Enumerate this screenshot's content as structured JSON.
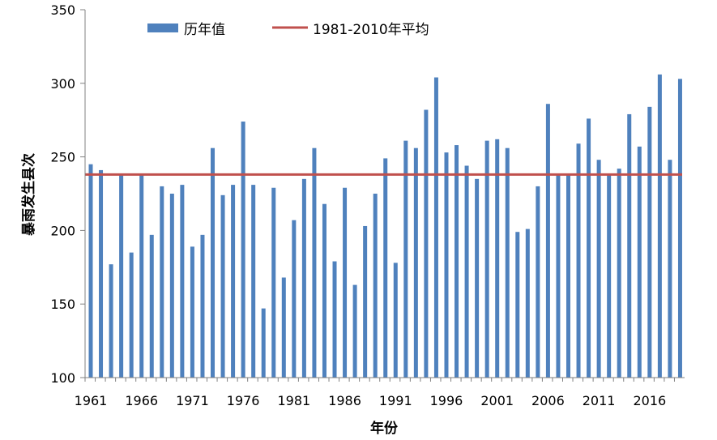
{
  "chart_data": {
    "type": "bar",
    "title": "",
    "xlabel": "年份",
    "ylabel": "暴雨发生县次",
    "ylim": [
      100,
      350
    ],
    "yticks": [
      100,
      150,
      200,
      250,
      300,
      350
    ],
    "xtick_labels": [
      "1961",
      "1966",
      "1971",
      "1976",
      "1981",
      "1986",
      "1991",
      "1996",
      "2001",
      "2006",
      "2011",
      "2016"
    ],
    "legend_position": "top",
    "grid": false,
    "years": [
      1961,
      1962,
      1963,
      1964,
      1965,
      1966,
      1967,
      1968,
      1969,
      1970,
      1971,
      1972,
      1973,
      1974,
      1975,
      1976,
      1977,
      1978,
      1979,
      1980,
      1981,
      1982,
      1983,
      1984,
      1985,
      1986,
      1987,
      1988,
      1989,
      1990,
      1991,
      1992,
      1993,
      1994,
      1995,
      1996,
      1997,
      1998,
      1999,
      2000,
      2001,
      2002,
      2003,
      2004,
      2005,
      2006,
      2007,
      2008,
      2009,
      2010,
      2011,
      2012,
      2013,
      2014,
      2015,
      2016,
      2017,
      2018,
      2019
    ],
    "series": [
      {
        "name": "历年值",
        "type": "bar",
        "color": "#4f81bd",
        "values": [
          245,
          241,
          177,
          238,
          185,
          238,
          197,
          230,
          225,
          231,
          189,
          197,
          256,
          224,
          231,
          274,
          231,
          147,
          229,
          168,
          207,
          235,
          256,
          218,
          179,
          229,
          163,
          203,
          225,
          249,
          178,
          261,
          256,
          282,
          304,
          253,
          258,
          244,
          235,
          261,
          262,
          256,
          199,
          201,
          230,
          286,
          238,
          238,
          259,
          276,
          248,
          238,
          242,
          279,
          257,
          284,
          306,
          248,
          303
        ]
      },
      {
        "name": "1981-2010年平均",
        "type": "line",
        "color": "#c0504d",
        "value": 238
      }
    ]
  }
}
